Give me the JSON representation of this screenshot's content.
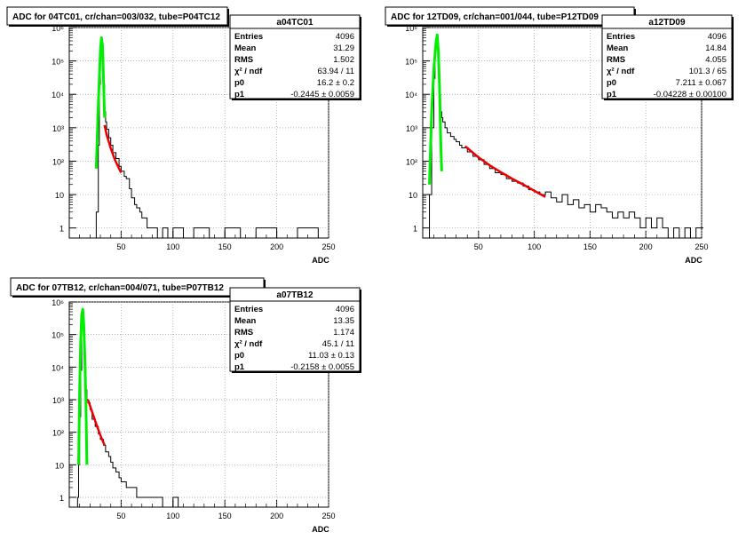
{
  "chart_data": [
    {
      "type": "line",
      "title": "ADC for 04TC01,  cr/chan=003/032,  tube=P04TC12",
      "xlabel": "ADC",
      "ylabel": "",
      "xlim": [
        0,
        250
      ],
      "ylim": [
        0.5,
        1000000
      ],
      "yscale": "log",
      "grid": true,
      "xticks": [
        50,
        100,
        150,
        200,
        250
      ],
      "yticks": [
        "1",
        "10",
        "10²",
        "10³",
        "10⁴",
        "10⁵",
        "10⁶"
      ],
      "stats": {
        "name": "a04TC01",
        "rows": [
          {
            "label": "Entries",
            "value": "4096"
          },
          {
            "label": "Mean",
            "value": "31.29"
          },
          {
            "label": "RMS",
            "value": "1.502"
          },
          {
            "label": "χ² / ndf",
            "value": "63.94 / 11"
          },
          {
            "label": "p0",
            "value": "16.2 ± 0.2"
          },
          {
            "label": "p1",
            "value": "-0.2445 ± 0.0059"
          }
        ]
      },
      "series": [
        {
          "color": "#000000",
          "x": [
            24,
            26,
            28,
            29,
            30,
            31,
            32,
            33,
            34,
            35,
            36,
            38,
            40,
            42,
            45,
            48,
            50,
            53,
            55,
            58,
            60,
            63,
            65,
            68,
            70,
            72,
            75,
            78,
            80,
            85,
            90,
            95,
            100,
            110,
            120,
            135,
            150,
            165,
            180,
            200,
            220,
            235,
            240
          ],
          "y": [
            0,
            3,
            300,
            20000,
            150000,
            400000,
            200000,
            20000,
            3000,
            1500,
            900,
            500,
            300,
            180,
            120,
            70,
            50,
            35,
            30,
            15,
            8,
            5,
            4,
            3,
            2,
            2,
            1,
            1,
            1,
            0,
            1,
            0,
            1,
            0,
            1,
            0,
            1,
            0,
            1,
            0,
            1,
            1,
            0
          ]
        },
        {
          "color": "#00ee00",
          "x": [
            26,
            28,
            30,
            31,
            32,
            33,
            34
          ],
          "y": [
            60,
            5000,
            200000,
            500000,
            300000,
            30000,
            2000
          ]
        },
        {
          "color": "#ee0000",
          "x": [
            34,
            36,
            40,
            44,
            48,
            50
          ],
          "y": [
            1200,
            620,
            240,
            110,
            60,
            45
          ]
        }
      ]
    },
    {
      "type": "line",
      "title": "ADC for 12TD09,  cr/chan=001/044,  tube=P12TD09",
      "xlabel": "ADC",
      "ylabel": "",
      "xlim": [
        0,
        250
      ],
      "ylim": [
        0.5,
        1000000
      ],
      "yscale": "log",
      "grid": true,
      "xticks": [
        50,
        100,
        150,
        200,
        250
      ],
      "yticks": [
        "1",
        "10",
        "10²",
        "10³",
        "10⁴",
        "10⁵",
        "10⁶"
      ],
      "stats": {
        "name": "a12TD09",
        "rows": [
          {
            "label": "Entries",
            "value": "4096"
          },
          {
            "label": "Mean",
            "value": "14.84"
          },
          {
            "label": "RMS",
            "value": "4.055"
          },
          {
            "label": "χ² / ndf",
            "value": "101.3 / 65"
          },
          {
            "label": "p0",
            "value": "7.211 ± 0.067"
          },
          {
            "label": "p1",
            "value": "-0.04228 ± 0.00100"
          }
        ]
      },
      "series": [
        {
          "color": "#000000",
          "x": [
            4,
            6,
            8,
            10,
            11,
            12,
            13,
            14,
            15,
            16,
            17,
            18,
            20,
            22,
            25,
            28,
            30,
            33,
            35,
            40,
            45,
            50,
            55,
            60,
            65,
            70,
            75,
            80,
            85,
            90,
            95,
            100,
            105,
            110,
            115,
            120,
            125,
            130,
            135,
            140,
            145,
            150,
            155,
            160,
            165,
            170,
            175,
            180,
            185,
            190,
            195,
            200,
            205,
            210,
            215,
            220,
            225,
            230,
            235,
            240,
            245,
            250
          ],
          "y": [
            0,
            10,
            1000,
            30000,
            200000,
            500000,
            300000,
            60000,
            10000,
            3000,
            2000,
            1500,
            1000,
            700,
            550,
            450,
            380,
            300,
            250,
            190,
            140,
            110,
            80,
            60,
            45,
            40,
            30,
            25,
            22,
            18,
            14,
            12,
            10,
            12,
            8,
            6,
            10,
            5,
            7,
            4,
            5,
            3,
            5,
            4,
            3,
            2,
            3,
            2,
            3,
            2,
            1,
            2,
            1,
            2,
            1,
            0,
            1,
            0,
            1,
            0,
            1,
            1
          ]
        },
        {
          "color": "#00ee00",
          "x": [
            6,
            8,
            10,
            12,
            13,
            14,
            15,
            16,
            17
          ],
          "y": [
            20,
            3000,
            60000,
            400000,
            600000,
            200000,
            20000,
            600,
            50
          ]
        },
        {
          "color": "#ee0000",
          "x": [
            38,
            50,
            60,
            70,
            80,
            90,
            100,
            110
          ],
          "y": [
            280,
            130,
            75,
            47,
            30,
            20,
            13,
            8.5
          ]
        }
      ]
    },
    {
      "type": "line",
      "title": "ADC for 07TB12,  cr/chan=004/071,  tube=P07TB12",
      "xlabel": "ADC",
      "ylabel": "",
      "xlim": [
        0,
        250
      ],
      "ylim": [
        0.5,
        1000000
      ],
      "yscale": "log",
      "grid": true,
      "xticks": [
        50,
        100,
        150,
        200,
        250
      ],
      "yticks": [
        "1",
        "10",
        "10²",
        "10³",
        "10⁴",
        "10⁵",
        "10⁶"
      ],
      "stats": {
        "name": "a07TB12",
        "rows": [
          {
            "label": "Entries",
            "value": "4096"
          },
          {
            "label": "Mean",
            "value": "13.35"
          },
          {
            "label": "RMS",
            "value": "1.174"
          },
          {
            "label": "χ² / ndf",
            "value": "45.1 / 11"
          },
          {
            "label": "p0",
            "value": "11.03 ± 0.13"
          },
          {
            "label": "p1",
            "value": "-0.2158 ± 0.0055"
          }
        ]
      },
      "series": [
        {
          "color": "#000000",
          "x": [
            8,
            9,
            10,
            11,
            12,
            13,
            14,
            15,
            16,
            17,
            18,
            20,
            22,
            25,
            28,
            30,
            33,
            35,
            38,
            40,
            42,
            45,
            48,
            50,
            55,
            60,
            65,
            70,
            75,
            80,
            85,
            90,
            100,
            105,
            110,
            120,
            140,
            160,
            180,
            200
          ],
          "y": [
            1,
            10,
            300,
            8000,
            200000,
            500000,
            100000,
            10000,
            2000,
            1000,
            800,
            500,
            250,
            150,
            90,
            60,
            40,
            25,
            18,
            12,
            8,
            6,
            4,
            3,
            2,
            2,
            1,
            1,
            1,
            1,
            1,
            0,
            1,
            0,
            0,
            0,
            0,
            0,
            0,
            0
          ]
        },
        {
          "color": "#00ee00",
          "x": [
            9,
            10,
            11,
            12,
            13,
            14,
            15,
            16,
            17
          ],
          "y": [
            10,
            2000,
            60000,
            400000,
            600000,
            200000,
            20000,
            1000,
            10
          ]
        },
        {
          "color": "#ee0000",
          "x": [
            18,
            22,
            26,
            30,
            34
          ],
          "y": [
            1000,
            420,
            180,
            80,
            40
          ]
        }
      ]
    }
  ]
}
